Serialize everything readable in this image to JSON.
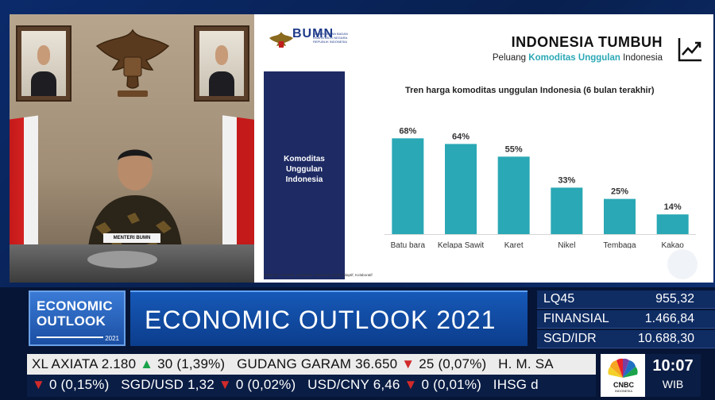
{
  "slide": {
    "bumn_logo_text": "BUMN",
    "bumn_sub": "KEMENTERIAN BADAN USAHA MILIK NEGARA REPUBLIK INDONESIA",
    "title": "INDONESIA TUMBUH",
    "subtitle_pre": "Peluang ",
    "subtitle_hl": "Komoditas Unggulan",
    "subtitle_post": " Indonesia",
    "side_label_1": "Komoditas",
    "side_label_2": "Unggulan",
    "side_label_3": "Indonesia",
    "footer": "AKHLAK - Amanah, Kompeten, Harmonis, Loyal, Adaptif, Kolaboratif",
    "icons": [
      "trend-up-icon",
      "garuda-emblem-icon"
    ]
  },
  "video": {
    "nameplate": "MENTERI BUMN"
  },
  "chart_data": {
    "type": "bar",
    "title": "Tren harga komoditas unggulan Indonesia (6 bulan terakhir)",
    "categories": [
      "Batu bara",
      "Kelapa Sawit",
      "Karet",
      "Nikel",
      "Tembaga",
      "Kakao"
    ],
    "values": [
      68,
      64,
      55,
      33,
      25,
      14
    ],
    "labels": [
      "68%",
      "64%",
      "55%",
      "33%",
      "25%",
      "14%"
    ],
    "ylim": [
      0,
      80
    ],
    "color": "#2aa8b5",
    "grid": false
  },
  "lower_third": {
    "program_line1": "ECONOMIC",
    "program_line2": "OUTLOOK",
    "program_year": "2021",
    "headline": "ECONOMIC OUTLOOK 2021"
  },
  "quotes": [
    {
      "name": "LQ45",
      "value": "955,32"
    },
    {
      "name": "FINANSIAL",
      "value": "1.466,84"
    },
    {
      "name": "SGD/IDR",
      "value": "10.688,30"
    }
  ],
  "ticker1": {
    "a_name": "XL AXIATA",
    "a_price": "2.180",
    "a_change": "30 (1,39%)",
    "b_name": "GUDANG GARAM",
    "b_price": "36.650",
    "b_change": "25 (0,07%)",
    "c_name": "H. M. SA"
  },
  "ticker2": {
    "a_change": "0 (0,15%)",
    "b_name": "SGD/USD",
    "b_price": "1,32",
    "b_change": "0 (0,02%)",
    "c_name": "USD/CNY",
    "c_price": "6,46",
    "c_change": "0 (0,01%)",
    "d_name": "IHSG d"
  },
  "broadcaster": {
    "name": "CNBC",
    "sub": "INDONESIA",
    "time": "10:07",
    "zone": "WIB"
  },
  "colors": {
    "bar": "#2aa8b5",
    "up": "#1aa34a",
    "down": "#d22a2a",
    "panel": "#1d2a63"
  }
}
